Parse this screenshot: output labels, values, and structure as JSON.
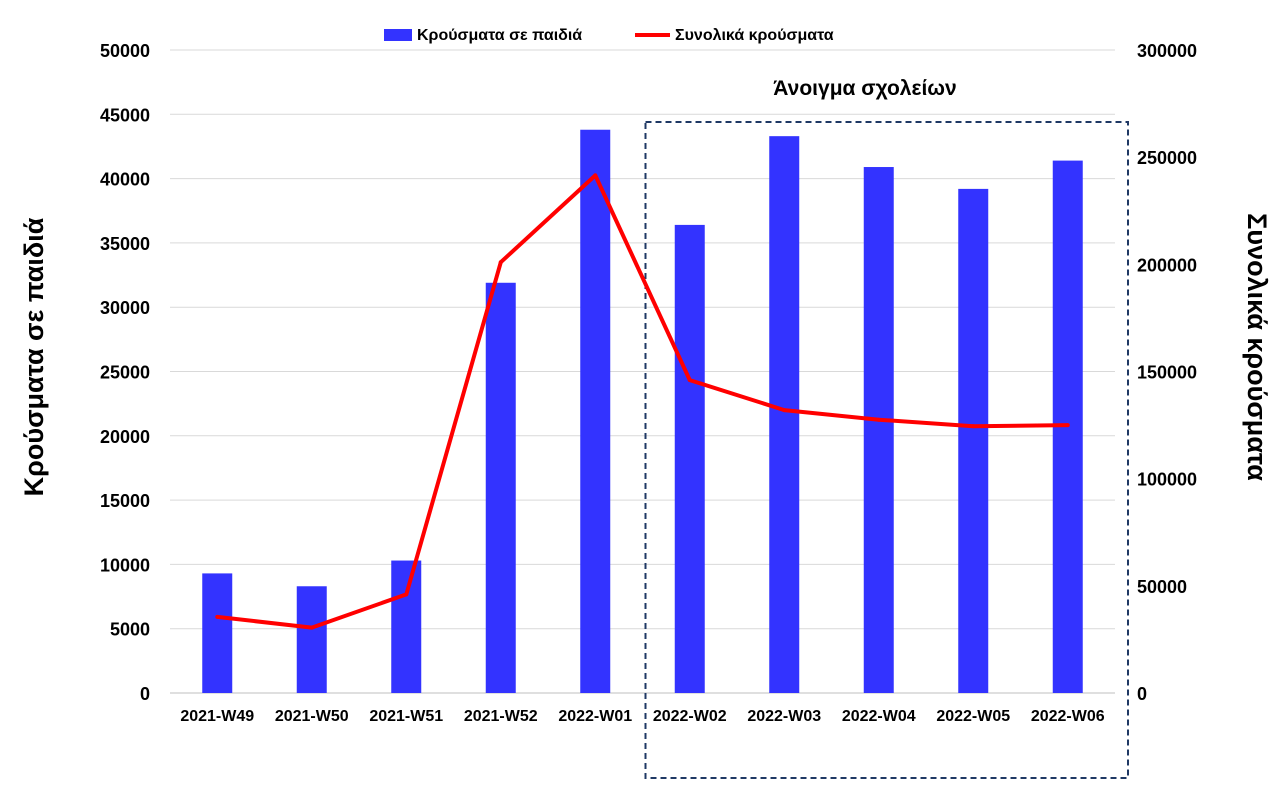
{
  "chart_data": {
    "type": "bar+line",
    "categories": [
      "2021-W49",
      "2021-W50",
      "2021-W51",
      "2021-W52",
      "2022-W01",
      "2022-W02",
      "2022-W03",
      "2022-W04",
      "2022-W05",
      "2022-W06"
    ],
    "series": [
      {
        "name": "Κρούσματα σε παιδιά",
        "type": "bar",
        "axis": "left",
        "color": "#3333ff",
        "values": [
          9300,
          8300,
          10300,
          31900,
          43800,
          36400,
          43300,
          40900,
          39200,
          41400
        ]
      },
      {
        "name": "Συνολικά κρούσματα",
        "type": "line",
        "axis": "right",
        "color": "#ff0000",
        "values": [
          35500,
          30500,
          46000,
          201000,
          241500,
          146000,
          132000,
          127500,
          124500,
          125000
        ]
      }
    ],
    "ylabel": "Κρούσματα σε παιδιά",
    "y2label": "Συνολικά κρούσματα",
    "ylim": [
      0,
      50000
    ],
    "y2lim": [
      0,
      300000
    ],
    "yticks": [
      "0",
      "5000",
      "10000",
      "15000",
      "20000",
      "25000",
      "30000",
      "35000",
      "40000",
      "45000",
      "50000"
    ],
    "y2ticks": [
      "0",
      "50000",
      "100000",
      "150000",
      "200000",
      "250000",
      "300000"
    ],
    "grid": true,
    "legend": "top-center",
    "annotation": {
      "text": "Άνοιγμα σχολείων",
      "from_category": "2022-W02",
      "to_category": "2022-W06",
      "border_color": "#1f3864"
    }
  }
}
